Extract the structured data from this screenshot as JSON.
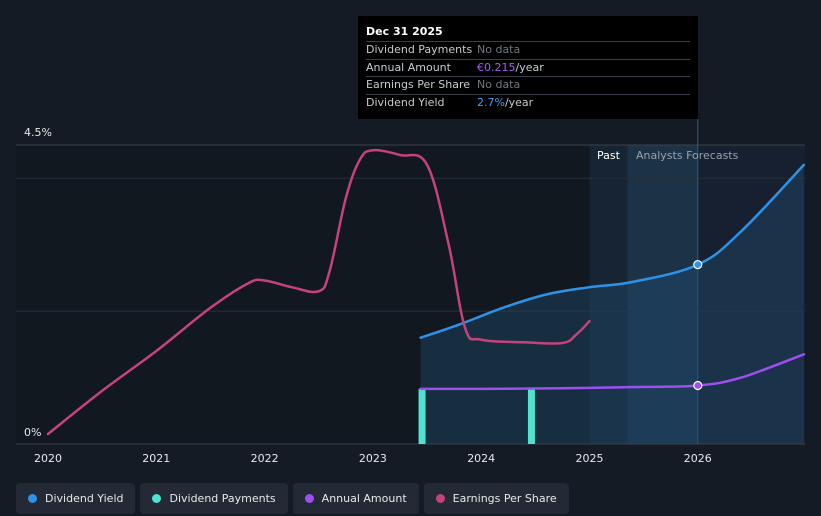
{
  "chart_data": {
    "type": "line",
    "x_ticks": [
      "2020",
      "2021",
      "2022",
      "2023",
      "2024",
      "2025",
      "2026"
    ],
    "y_ticks": [
      {
        "label": "4.5%",
        "value": 4.5
      },
      {
        "label": "0%",
        "value": 0
      }
    ],
    "ylim": [
      0,
      4.5
    ],
    "regions": {
      "past_label": "Past",
      "forecast_label": "Analysts Forecasts"
    },
    "series": [
      {
        "name": "Dividend Yield",
        "color": "#2e93e6",
        "points": [
          [
            2023.44,
            1.6
          ],
          [
            2023.8,
            1.8
          ],
          [
            2024.2,
            2.05
          ],
          [
            2024.6,
            2.25
          ],
          [
            2025.0,
            2.36
          ],
          [
            2025.4,
            2.44
          ],
          [
            2026.0,
            2.7
          ],
          [
            2026.4,
            3.2
          ],
          [
            2026.98,
            4.2
          ]
        ],
        "marker": [
          2026.0,
          2.7
        ]
      },
      {
        "name": "Annual Amount",
        "color": "#9d4ff0",
        "points": [
          [
            2023.44,
            0.83
          ],
          [
            2024.0,
            0.83
          ],
          [
            2024.5,
            0.835
          ],
          [
            2025.0,
            0.845
          ],
          [
            2025.5,
            0.86
          ],
          [
            2026.0,
            0.88
          ],
          [
            2026.4,
            1.0
          ],
          [
            2026.98,
            1.35
          ]
        ],
        "marker": [
          2026.0,
          0.88
        ]
      },
      {
        "name": "Earnings Per Share",
        "color": "#c6427c",
        "points": [
          [
            2020.0,
            0.15
          ],
          [
            2020.5,
            0.8
          ],
          [
            2021.0,
            1.4
          ],
          [
            2021.5,
            2.05
          ],
          [
            2021.85,
            2.42
          ],
          [
            2022.0,
            2.46
          ],
          [
            2022.25,
            2.36
          ],
          [
            2022.5,
            2.3
          ],
          [
            2022.6,
            2.6
          ],
          [
            2022.75,
            3.7
          ],
          [
            2022.88,
            4.28
          ],
          [
            2023.0,
            4.42
          ],
          [
            2023.25,
            4.35
          ],
          [
            2023.5,
            4.2
          ],
          [
            2023.7,
            3.0
          ],
          [
            2023.85,
            1.75
          ],
          [
            2024.0,
            1.57
          ],
          [
            2024.4,
            1.53
          ],
          [
            2024.75,
            1.52
          ],
          [
            2024.88,
            1.65
          ],
          [
            2025.0,
            1.85
          ]
        ]
      },
      {
        "name": "Dividend Payments",
        "color": "#4ee3d0",
        "bars": [
          2023.44,
          2024.45
        ]
      }
    ],
    "tooltip": {
      "date": "Dec 31 2025",
      "rows": [
        {
          "label": "Dividend Payments",
          "value": "No data"
        },
        {
          "label": "Annual Amount",
          "value": "€0.215",
          "unit": "/year"
        },
        {
          "label": "Earnings Per Share",
          "value": "No data"
        },
        {
          "label": "Dividend Yield",
          "value": "2.7%",
          "unit": "/year"
        }
      ]
    },
    "legend": [
      {
        "label": "Dividend Yield",
        "color": "#2e93e6"
      },
      {
        "label": "Dividend Payments",
        "color": "#4ee3d0"
      },
      {
        "label": "Annual Amount",
        "color": "#9d4ff0"
      },
      {
        "label": "Earnings Per Share",
        "color": "#c6427c"
      }
    ]
  }
}
